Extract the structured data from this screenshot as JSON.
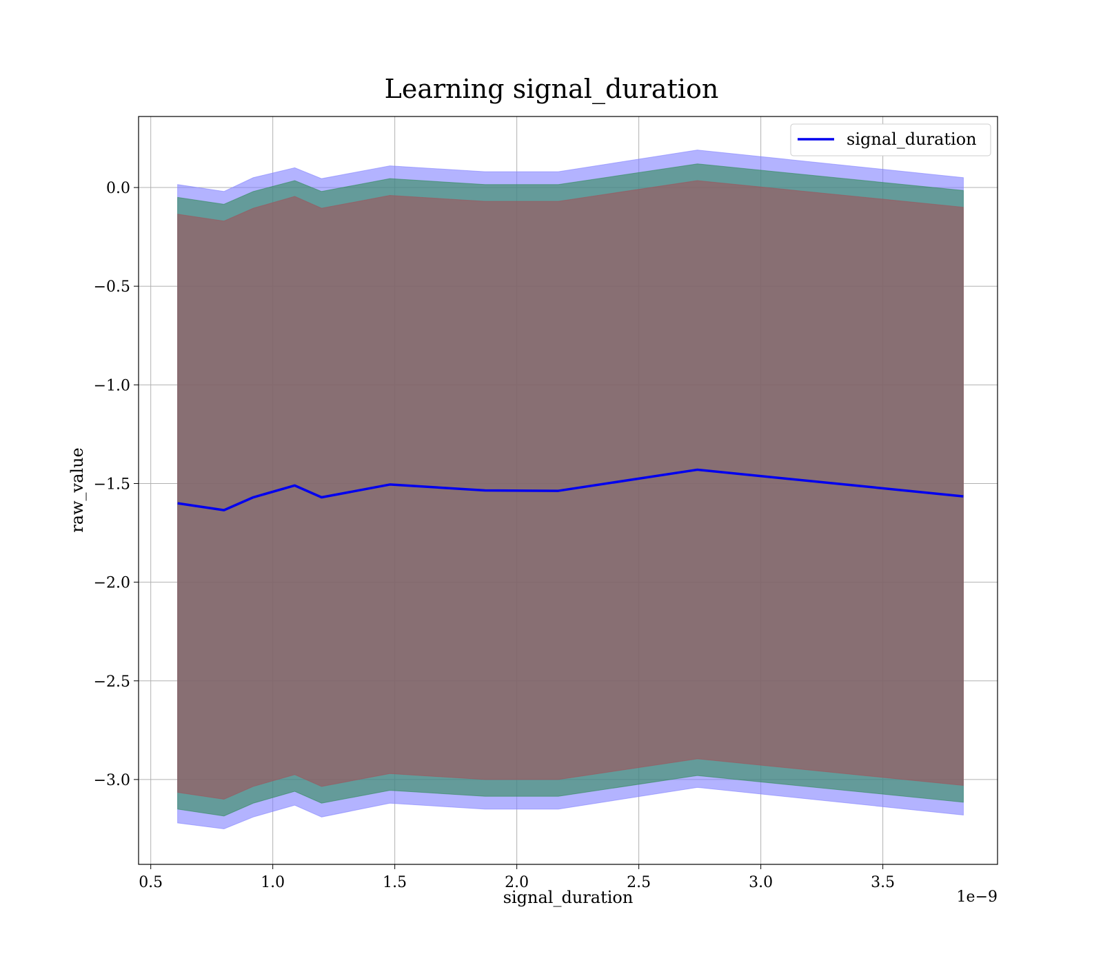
{
  "chart_data": {
    "type": "line",
    "title": "Learning signal_duration",
    "xlabel": "signal_duration",
    "ylabel": "raw_value",
    "x_offset_label": "1e−9",
    "xlim": [
      0.45,
      3.97
    ],
    "ylim": [
      -3.43,
      0.36
    ],
    "xticks": [
      0.5,
      1.0,
      1.5,
      2.0,
      2.5,
      3.0,
      3.5
    ],
    "xtick_labels": [
      "0.5",
      "1.0",
      "1.5",
      "2.0",
      "2.5",
      "3.0",
      "3.5"
    ],
    "yticks": [
      0.0,
      -0.5,
      -1.0,
      -1.5,
      -2.0,
      -2.5,
      -3.0
    ],
    "ytick_labels": [
      "0.0",
      "−0.5",
      "−1.0",
      "−1.5",
      "−2.0",
      "−2.5",
      "−3.0"
    ],
    "grid": true,
    "legend_position": "upper right",
    "x": [
      0.61,
      0.8,
      0.92,
      1.09,
      1.2,
      1.48,
      1.87,
      2.17,
      2.74,
      3.83
    ],
    "series": [
      {
        "name": "signal_duration",
        "color": "#0000ee",
        "values": [
          -1.6,
          -1.635,
          -1.57,
          -1.51,
          -1.57,
          -1.505,
          -1.535,
          -1.537,
          -1.43,
          -1.565
        ]
      }
    ],
    "bands": [
      {
        "color": "#8080ff",
        "upper": [
          0.015,
          -0.02,
          0.05,
          0.1,
          0.045,
          0.11,
          0.08,
          0.08,
          0.19,
          0.05
        ],
        "lower": [
          -3.22,
          -3.25,
          -3.19,
          -3.13,
          -3.19,
          -3.12,
          -3.15,
          -3.15,
          -3.04,
          -3.18
        ]
      },
      {
        "color": "#2e8b57",
        "upper": [
          -0.05,
          -0.085,
          -0.02,
          0.035,
          -0.02,
          0.045,
          0.015,
          0.015,
          0.12,
          -0.015
        ],
        "lower": [
          -3.15,
          -3.185,
          -3.12,
          -3.06,
          -3.12,
          -3.055,
          -3.085,
          -3.085,
          -2.98,
          -3.115
        ]
      },
      {
        "color": "#a0525a",
        "upper": [
          -0.135,
          -0.17,
          -0.105,
          -0.045,
          -0.105,
          -0.04,
          -0.07,
          -0.07,
          0.035,
          -0.1
        ],
        "lower": [
          -3.065,
          -3.1,
          -3.035,
          -2.975,
          -3.035,
          -2.97,
          -3.0,
          -3.0,
          -2.895,
          -3.03
        ]
      }
    ]
  }
}
